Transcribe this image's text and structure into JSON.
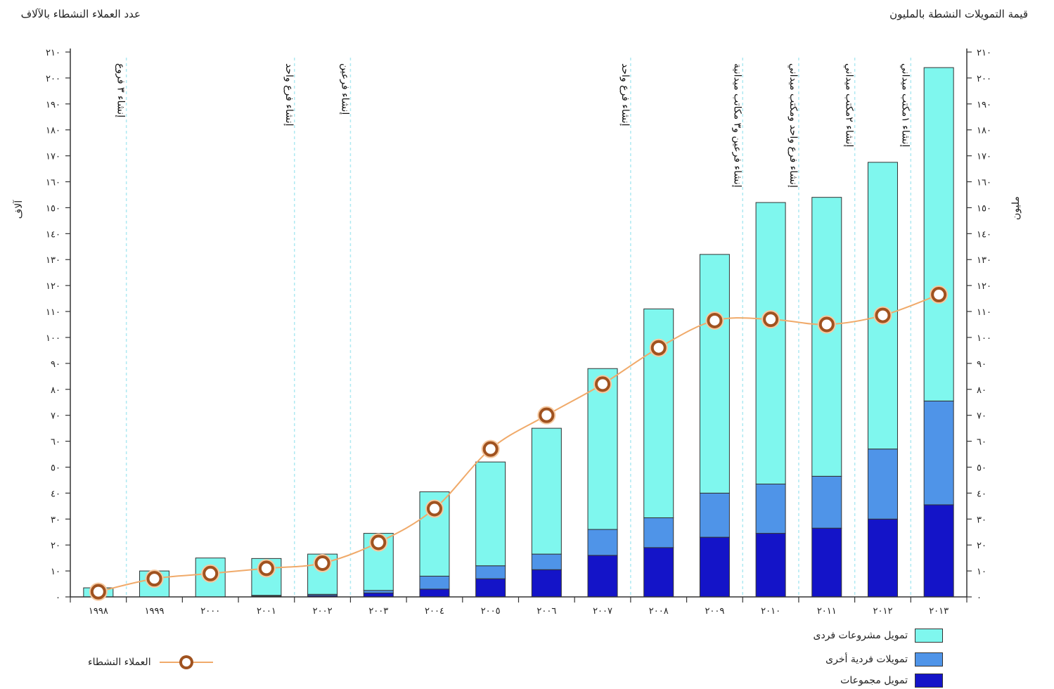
{
  "titles": {
    "left_axis_title": "عدد العملاء النشطاء بالآلاف",
    "right_axis_title": "قيمة التمويلات النشطة بالمليون",
    "left_unit": "آلاف",
    "right_unit": "مليون"
  },
  "colors": {
    "individual_projects": "#7ff7ee",
    "other_individual": "#4f94e8",
    "group_financing": "#1414c8",
    "line": "#f0aa6a",
    "marker_ring": "#a0521f",
    "guide": "#aee9f2",
    "axis": "#333333"
  },
  "chart_data": {
    "type": "bar",
    "x": [
      "١٩٩٨",
      "١٩٩٩",
      "٢٠٠٠",
      "٢٠٠١",
      "٢٠٠٢",
      "٢٠٠٣",
      "٢٠٠٤",
      "٢٠٠٥",
      "٢٠٠٦",
      "٢٠٠٧",
      "٢٠٠٨",
      "٢٠٠٩",
      "٢٠١٠",
      "٢٠١١",
      "٢٠١٢",
      "٢٠١٣"
    ],
    "ylim": [
      0,
      210
    ],
    "yticks": [
      {
        "v": 0,
        "label": "٠"
      },
      {
        "v": 10,
        "label": "١٠"
      },
      {
        "v": 20,
        "label": "٢٠"
      },
      {
        "v": 30,
        "label": "٣٠"
      },
      {
        "v": 40,
        "label": "٤٠"
      },
      {
        "v": 50,
        "label": "٥٠"
      },
      {
        "v": 60,
        "label": "٦٠"
      },
      {
        "v": 70,
        "label": "٧٠"
      },
      {
        "v": 80,
        "label": "٨٠"
      },
      {
        "v": 90,
        "label": "٩٠"
      },
      {
        "v": 100,
        "label": "١٠٠"
      },
      {
        "v": 110,
        "label": "١١٠"
      },
      {
        "v": 120,
        "label": "١٢٠"
      },
      {
        "v": 130,
        "label": "١٣٠"
      },
      {
        "v": 140,
        "label": "١٤٠"
      },
      {
        "v": 150,
        "label": "١٥٠"
      },
      {
        "v": 160,
        "label": "١٦٠"
      },
      {
        "v": 170,
        "label": "١٧٠"
      },
      {
        "v": 180,
        "label": "١٨٠"
      },
      {
        "v": 190,
        "label": "١٩٠"
      },
      {
        "v": 200,
        "label": "٢٠٠"
      },
      {
        "v": 210,
        "label": "٢١٠"
      }
    ],
    "series": [
      {
        "name": "تمويل مجموعات",
        "color_key": "group_financing",
        "values": [
          0,
          0,
          0,
          0.3,
          0.5,
          1.5,
          3,
          7,
          10.5,
          16,
          19,
          23,
          24.5,
          26.5,
          30,
          35.5
        ]
      },
      {
        "name": "تمويلات فردية أخرى",
        "color_key": "other_individual",
        "values": [
          0,
          0,
          0,
          0.3,
          0.5,
          1,
          5,
          5,
          6,
          10,
          11.5,
          17,
          19,
          20,
          27,
          40
        ]
      },
      {
        "name": "تمويل مشروعات فردى",
        "color_key": "individual_projects",
        "values": [
          3.5,
          10,
          15,
          14.2,
          15.5,
          22,
          32.5,
          40,
          48.5,
          62,
          80.5,
          92,
          108.5,
          107.5,
          110.5,
          128.5
        ]
      }
    ],
    "line_series": {
      "name": "العملاء النشطاء",
      "values": [
        2,
        7,
        9,
        11,
        13,
        21,
        34,
        57,
        70,
        82,
        96,
        106.5,
        107,
        105,
        108.5,
        116.5
      ]
    },
    "annotations": [
      {
        "after_index": 0,
        "text": "إنشاء ٣ فروع"
      },
      {
        "after_index": 3,
        "text": "إنشاء فرع واحد"
      },
      {
        "after_index": 4,
        "text": "إنشاء فرعين"
      },
      {
        "after_index": 9,
        "text": "إنشاء فرع واحد"
      },
      {
        "after_index": 11,
        "text": "إنشاء فرعين و٣ مكاتب ميدانية"
      },
      {
        "after_index": 12,
        "text": "إنشاء فرع واحد ومكتب ميداني"
      },
      {
        "after_index": 13,
        "text": "إنشاء ٢مكتب ميداني"
      },
      {
        "after_index": 14,
        "text": "إنشاء ١مكتب ميداني"
      }
    ],
    "grid": false,
    "legend_position": "bottom"
  }
}
